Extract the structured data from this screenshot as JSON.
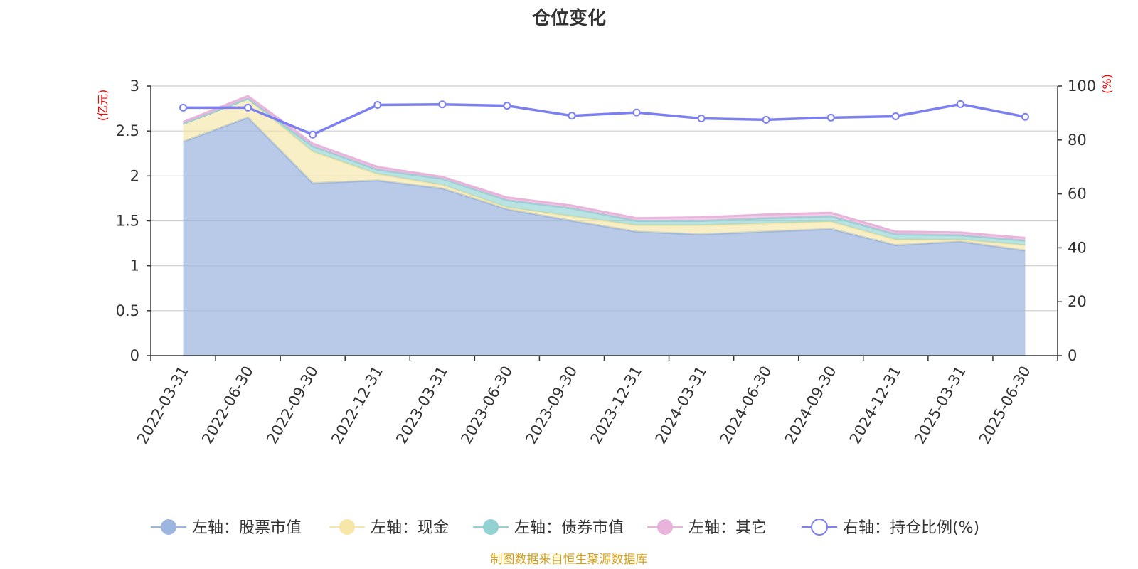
{
  "chart_data": {
    "type": "area",
    "title": "仓位变化",
    "left_unit": "(亿元)",
    "right_unit": "(%)",
    "categories": [
      "2022-03-31",
      "2022-06-30",
      "2022-09-30",
      "2022-12-31",
      "2023-03-31",
      "2023-06-30",
      "2023-09-30",
      "2023-12-31",
      "2024-03-31",
      "2024-06-30",
      "2024-09-30",
      "2024-12-31",
      "2025-03-31",
      "2025-06-30"
    ],
    "left_axis": {
      "min": 0,
      "max": 3,
      "ticks": [
        "0",
        "0.5",
        "1",
        "1.5",
        "2",
        "2.5",
        "3"
      ]
    },
    "right_axis": {
      "min": 0,
      "max": 100,
      "ticks": [
        "0",
        "20",
        "40",
        "60",
        "80",
        "100"
      ]
    },
    "series": [
      {
        "name": "左轴：股票市值",
        "axis": "left",
        "stacked": true,
        "color": "#9db6df",
        "values": [
          2.38,
          2.65,
          1.92,
          1.95,
          1.86,
          1.63,
          1.5,
          1.38,
          1.35,
          1.38,
          1.41,
          1.23,
          1.27,
          1.17
        ]
      },
      {
        "name": "左轴：现金",
        "axis": "left",
        "stacked": true,
        "color": "#f6e7a8",
        "values": [
          0.2,
          0.21,
          0.35,
          0.07,
          0.04,
          0.02,
          0.05,
          0.07,
          0.1,
          0.09,
          0.08,
          0.06,
          0.02,
          0.06
        ]
      },
      {
        "name": "左轴：债券市值",
        "axis": "left",
        "stacked": true,
        "color": "#93d2d3",
        "values": [
          0.0,
          0.0,
          0.06,
          0.05,
          0.07,
          0.08,
          0.09,
          0.05,
          0.05,
          0.06,
          0.06,
          0.06,
          0.05,
          0.05
        ]
      },
      {
        "name": "左轴：其它",
        "axis": "left",
        "stacked": true,
        "color": "#e9b4db",
        "values": [
          0.02,
          0.03,
          0.03,
          0.03,
          0.02,
          0.03,
          0.03,
          0.03,
          0.04,
          0.04,
          0.04,
          0.03,
          0.03,
          0.03
        ]
      },
      {
        "name": "右轴：持仓比例(%)",
        "axis": "right",
        "stacked": false,
        "color": "#7b7ff0",
        "values": [
          92.0,
          92.0,
          82.0,
          93.0,
          93.2,
          92.7,
          89.0,
          90.2,
          88.0,
          87.5,
          88.3,
          88.8,
          93.3,
          88.6
        ]
      }
    ],
    "grid": true,
    "legend_position": "bottom"
  },
  "source_note": "制图数据来自恒生聚源数据库"
}
